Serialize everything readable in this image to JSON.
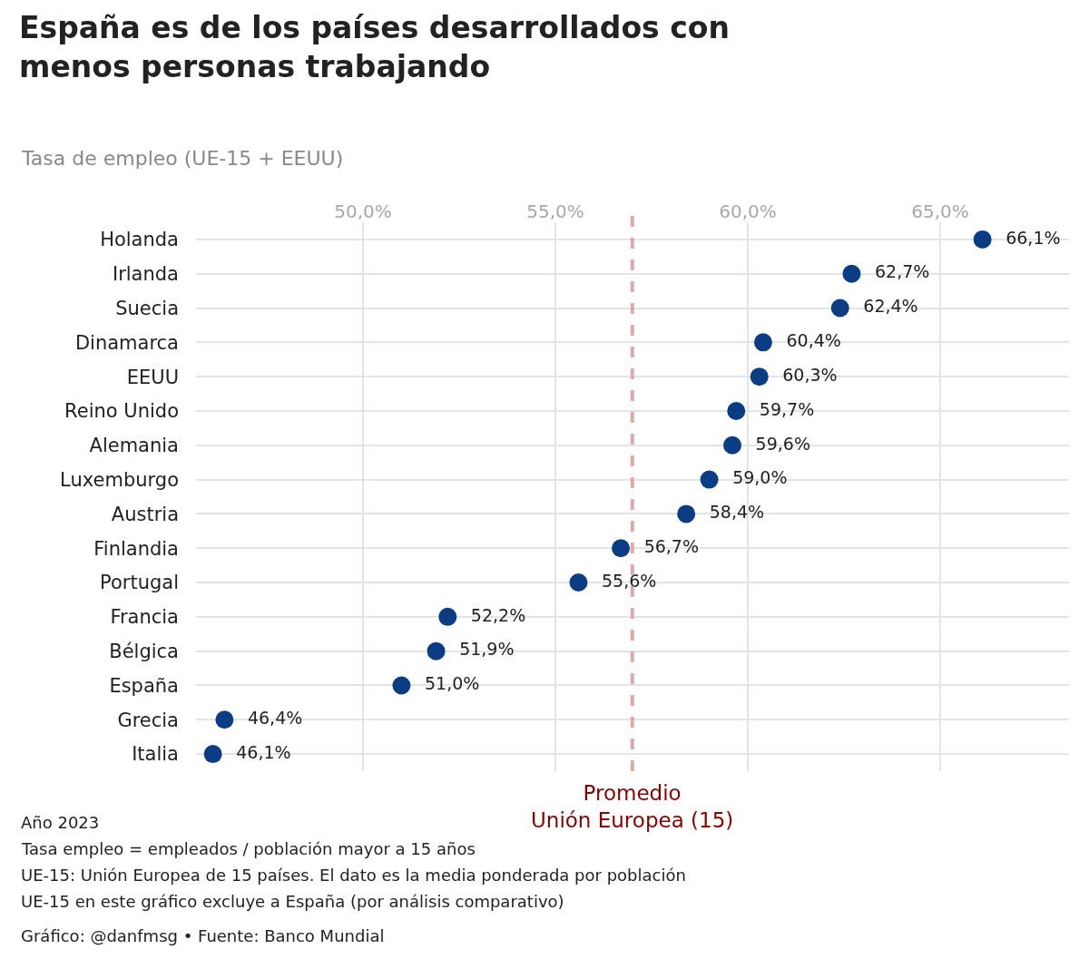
{
  "chart_data": {
    "type": "scatter",
    "orientation": "horizontal",
    "title": "España es de los países desarrollados con\nmenos personas trabajando",
    "subtitle": "Tasa de empleo (UE-15 + EEUU)",
    "categories": [
      "Holanda",
      "Irlanda",
      "Suecia",
      "Dinamarca",
      "EEUU",
      "Reino Unido",
      "Alemania",
      "Luxemburgo",
      "Austria",
      "Finlandia",
      "Portugal",
      "Francia",
      "Bélgica",
      "España",
      "Grecia",
      "Italia"
    ],
    "values": [
      66.1,
      62.7,
      62.4,
      60.4,
      60.3,
      59.7,
      59.6,
      59.0,
      58.4,
      56.7,
      55.6,
      52.2,
      51.9,
      51.0,
      46.4,
      46.1
    ],
    "value_labels": [
      "66,1%",
      "62,7%",
      "62,4%",
      "60,4%",
      "60,3%",
      "59,7%",
      "59,6%",
      "59,0%",
      "58,4%",
      "56,7%",
      "55,6%",
      "52,2%",
      "51,9%",
      "51,0%",
      "46,4%",
      "46,1%"
    ],
    "color": "#0b3d85",
    "marker": "circle",
    "xlim": [
      45.66,
      68.35
    ],
    "xticks": [
      {
        "value": 50,
        "label": "50,0%"
      },
      {
        "value": 55,
        "label": "55,0%"
      },
      {
        "value": 60,
        "label": "60,0%"
      },
      {
        "value": 65,
        "label": "65,0%"
      }
    ],
    "grid": true,
    "ref_lines": [
      {
        "axis": "x",
        "value": 57.0,
        "label": "Promedio\nUnión Europea (15)",
        "color": "#e0a8a8",
        "line_style": "dashed"
      }
    ],
    "annotations": [
      "Año 2023",
      "Tasa empleo = empleados / población mayor a 15 años",
      "UE-15: Unión Europea de 15 países. El dato es la media ponderada por población",
      "UE-15 en este gráfico excluye a España (por análisis comparativo)",
      "Gráfico: @danfmsg • Fuente: Banco Mundial"
    ]
  }
}
